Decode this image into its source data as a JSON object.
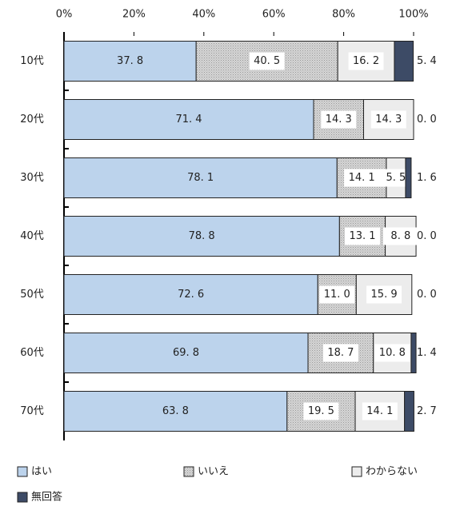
{
  "chart_data": {
    "type": "stacked-bar-horizontal",
    "categories": [
      "10代",
      "20代",
      "30代",
      "40代",
      "50代",
      "60代",
      "70代"
    ],
    "series": [
      {
        "name": "はい",
        "color": "#bcd3ec",
        "values": [
          37.8,
          71.4,
          78.1,
          78.8,
          72.6,
          69.8,
          63.8
        ],
        "value_labels": [
          "37. 8",
          "71. 4",
          "78. 1",
          "78. 8",
          "72. 6",
          "69. 8",
          "63. 8"
        ]
      },
      {
        "name": "いいえ",
        "color": "#d6d6d6",
        "values": [
          40.5,
          14.3,
          14.1,
          13.1,
          11.0,
          18.7,
          19.5
        ],
        "value_labels": [
          "40. 5",
          "14. 3",
          "14. 1",
          "13. 1",
          "11. 0",
          "18. 7",
          "19. 5"
        ]
      },
      {
        "name": "わからない",
        "color": "#ececec",
        "values": [
          16.2,
          14.3,
          5.5,
          8.8,
          15.9,
          10.8,
          14.1
        ],
        "value_labels": [
          "16. 2",
          "14. 3",
          "5. 5",
          "8. 8",
          "15. 9",
          "10. 8",
          "14. 1"
        ]
      },
      {
        "name": "無回答",
        "color": "#3d4b66",
        "values": [
          5.4,
          0.0,
          1.6,
          0.0,
          0.0,
          1.4,
          2.7
        ],
        "value_labels": [
          "5. 4",
          "0. 0",
          "1. 6",
          "0. 0",
          "0. 0",
          "1. 4",
          "2. 7"
        ]
      }
    ],
    "xlim": [
      0,
      100
    ],
    "xticks": [
      {
        "value": 0,
        "label": "0%"
      },
      {
        "value": 20,
        "label": "20%"
      },
      {
        "value": 40,
        "label": "40%"
      },
      {
        "value": 60,
        "label": "60%"
      },
      {
        "value": 80,
        "label": "80%"
      },
      {
        "value": 100,
        "label": "100%"
      }
    ],
    "grid": false,
    "legend": "bottom"
  }
}
